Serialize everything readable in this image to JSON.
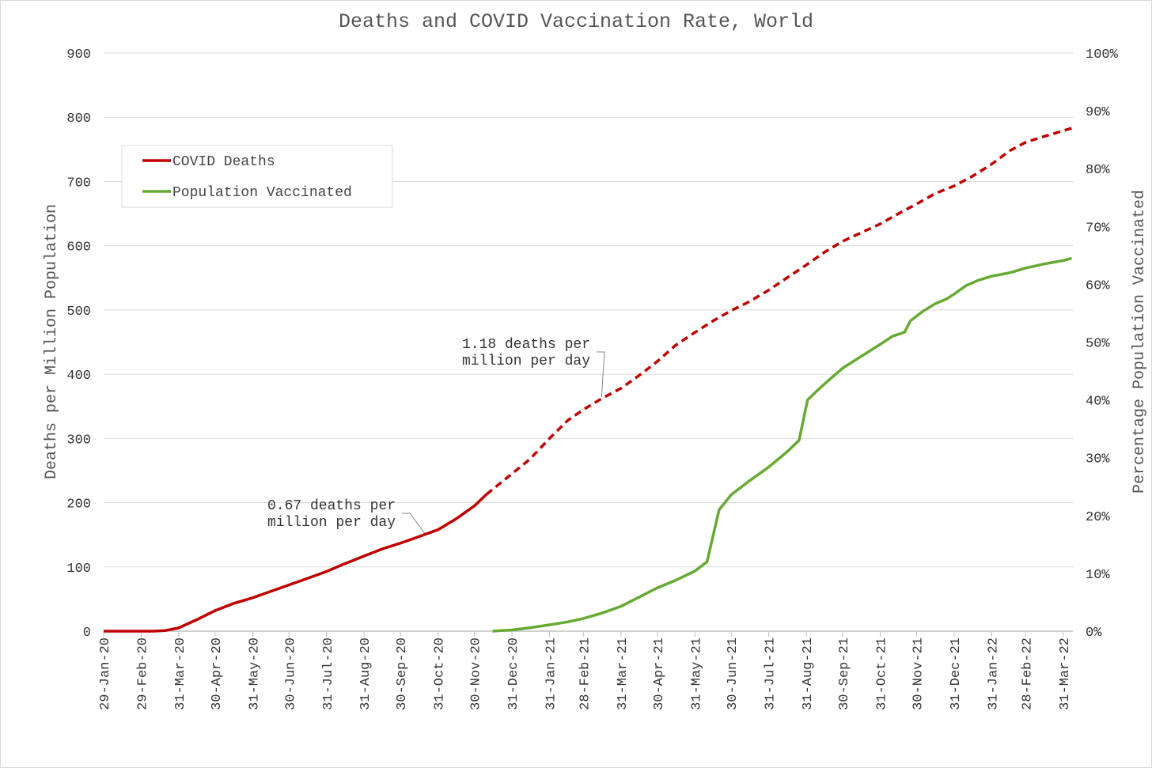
{
  "chart_data": {
    "type": "line",
    "title": "Deaths and COVID Vaccination Rate, World",
    "ylabel_left": "Deaths per Million Population",
    "ylabel_right": "Percentage Population Vaccinated",
    "ylim_left": [
      0,
      900
    ],
    "ylim_right": [
      0,
      1
    ],
    "y_ticks_left": [
      "0",
      "100",
      "200",
      "300",
      "400",
      "500",
      "600",
      "700",
      "800",
      "900"
    ],
    "y_ticks_right": [
      "0%",
      "10%",
      "20%",
      "30%",
      "40%",
      "50%",
      "60%",
      "70%",
      "80%",
      "90%",
      "100%"
    ],
    "x_ticks": [
      "29-Jan-20",
      "29-Feb-20",
      "31-Mar-20",
      "30-Apr-20",
      "31-May-20",
      "30-Jun-20",
      "31-Jul-20",
      "31-Aug-20",
      "30-Sep-20",
      "31-Oct-20",
      "30-Nov-20",
      "31-Dec-20",
      "31-Jan-21",
      "28-Feb-21",
      "31-Mar-21",
      "30-Apr-21",
      "31-May-21",
      "30-Jun-21",
      "31-Jul-21",
      "31-Aug-21",
      "30-Sep-21",
      "31-Oct-21",
      "30-Nov-21",
      "31-Dec-21",
      "31-Jan-22",
      "28-Feb-22",
      "31-Mar-22"
    ],
    "grid": true,
    "legend_position": "top-left",
    "series": [
      {
        "name": "COVID Deaths",
        "axis": "left",
        "color": "#c00000",
        "dashed_after": "2020-12-10",
        "x": [
          "2020-01-29",
          "2020-02-15",
          "2020-02-29",
          "2020-03-10",
          "2020-03-20",
          "2020-03-31",
          "2020-04-15",
          "2020-04-30",
          "2020-05-15",
          "2020-05-31",
          "2020-06-15",
          "2020-06-30",
          "2020-07-15",
          "2020-07-31",
          "2020-08-15",
          "2020-08-31",
          "2020-09-15",
          "2020-09-30",
          "2020-10-15",
          "2020-10-31",
          "2020-11-15",
          "2020-11-30",
          "2020-12-10",
          "2020-12-31",
          "2021-01-15",
          "2021-01-31",
          "2021-02-15",
          "2021-02-28",
          "2021-03-15",
          "2021-03-31",
          "2021-04-15",
          "2021-04-30",
          "2021-05-15",
          "2021-05-31",
          "2021-06-15",
          "2021-06-30",
          "2021-07-15",
          "2021-07-31",
          "2021-08-15",
          "2021-08-31",
          "2021-09-15",
          "2021-09-30",
          "2021-10-15",
          "2021-10-31",
          "2021-11-15",
          "2021-11-30",
          "2021-12-15",
          "2021-12-31",
          "2022-01-15",
          "2022-01-31",
          "2022-02-15",
          "2022-02-28",
          "2022-03-15",
          "2022-03-31",
          "2022-04-07"
        ],
        "values": [
          0,
          0,
          0,
          0,
          1,
          5,
          18,
          32,
          43,
          52,
          62,
          72,
          82,
          93,
          105,
          117,
          128,
          137,
          147,
          158,
          175,
          195,
          213,
          245,
          268,
          300,
          328,
          345,
          362,
          378,
          398,
          420,
          445,
          465,
          483,
          499,
          513,
          531,
          550,
          570,
          590,
          607,
          620,
          634,
          650,
          665,
          681,
          693,
          708,
          727,
          748,
          761,
          770,
          779,
          783
        ]
      },
      {
        "name": "Population Vaccinated",
        "axis": "right",
        "color": "#66aa33",
        "x": [
          "2020-12-15",
          "2020-12-31",
          "2021-01-15",
          "2021-01-31",
          "2021-02-15",
          "2021-02-28",
          "2021-03-15",
          "2021-03-31",
          "2021-04-15",
          "2021-04-30",
          "2021-05-15",
          "2021-05-31",
          "2021-06-05",
          "2021-06-10",
          "2021-06-20",
          "2021-06-30",
          "2021-07-15",
          "2021-07-31",
          "2021-08-15",
          "2021-08-25",
          "2021-09-01",
          "2021-09-10",
          "2021-09-20",
          "2021-09-30",
          "2021-10-15",
          "2021-10-31",
          "2021-11-10",
          "2021-11-20",
          "2021-11-25",
          "2021-12-05",
          "2021-12-15",
          "2021-12-25",
          "2021-12-31",
          "2022-01-10",
          "2022-01-20",
          "2022-01-31",
          "2022-02-15",
          "2022-02-28",
          "2022-03-15",
          "2022-03-31",
          "2022-04-07"
        ],
        "values": [
          0,
          0.002,
          0.006,
          0.011,
          0.016,
          0.022,
          0.031,
          0.043,
          0.059,
          0.075,
          0.088,
          0.104,
          0.112,
          0.12,
          0.21,
          0.236,
          0.26,
          0.284,
          0.31,
          0.33,
          0.4,
          0.418,
          0.437,
          0.455,
          0.475,
          0.496,
          0.51,
          0.517,
          0.537,
          0.553,
          0.566,
          0.575,
          0.583,
          0.598,
          0.607,
          0.614,
          0.62,
          0.628,
          0.635,
          0.641,
          0.645
        ]
      }
    ],
    "annotations": [
      {
        "line1": "0.67 deaths per",
        "line2": "million per day",
        "pointer": {
          "x": "2020-10-20",
          "y": 150
        }
      },
      {
        "line1": "1.18 deaths per",
        "line2": "million per day",
        "pointer": {
          "x": "2021-03-15",
          "y": 362
        }
      }
    ]
  }
}
